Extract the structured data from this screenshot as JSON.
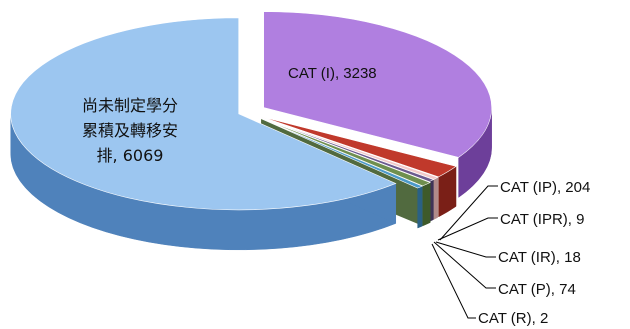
{
  "chart_data": {
    "type": "pie",
    "title": "",
    "legend": "none",
    "slices": [
      {
        "name": "CAT (I)",
        "value": 3238,
        "label": "CAT (I), 3238",
        "color": "#b07fe0",
        "side": "#6d3f9a"
      },
      {
        "name": "CAT (IP)",
        "value": 204,
        "label": "CAT (IP), 204",
        "color": "#c0392b",
        "side": "#7a1f17"
      },
      {
        "name": "CAT (IPR)",
        "value": 9,
        "label": "CAT (IPR), 9",
        "color": "#f2c9c9",
        "side": "#b08a8a"
      },
      {
        "name": "CAT (IR)",
        "value": 18,
        "label": "CAT (IR), 18",
        "color": "#6b5a8e",
        "side": "#3f3357"
      },
      {
        "name": "CAT (P)",
        "value": 74,
        "label": "CAT (P), 74",
        "color": "#6f8f4f",
        "side": "#3e5a2a"
      },
      {
        "name": "CAT (R)",
        "value": 2,
        "label": "CAT (R), 2",
        "color": "#4c9ac9",
        "side": "#2a6185"
      },
      {
        "name": "尚未制定學分累積及轉移安排",
        "value": 6069,
        "label_lines": [
          "尚未制定學分",
          "累積及轉移安",
          "排, 6069"
        ],
        "color": "#9cc6f0",
        "side": "#4f82bb"
      }
    ]
  }
}
